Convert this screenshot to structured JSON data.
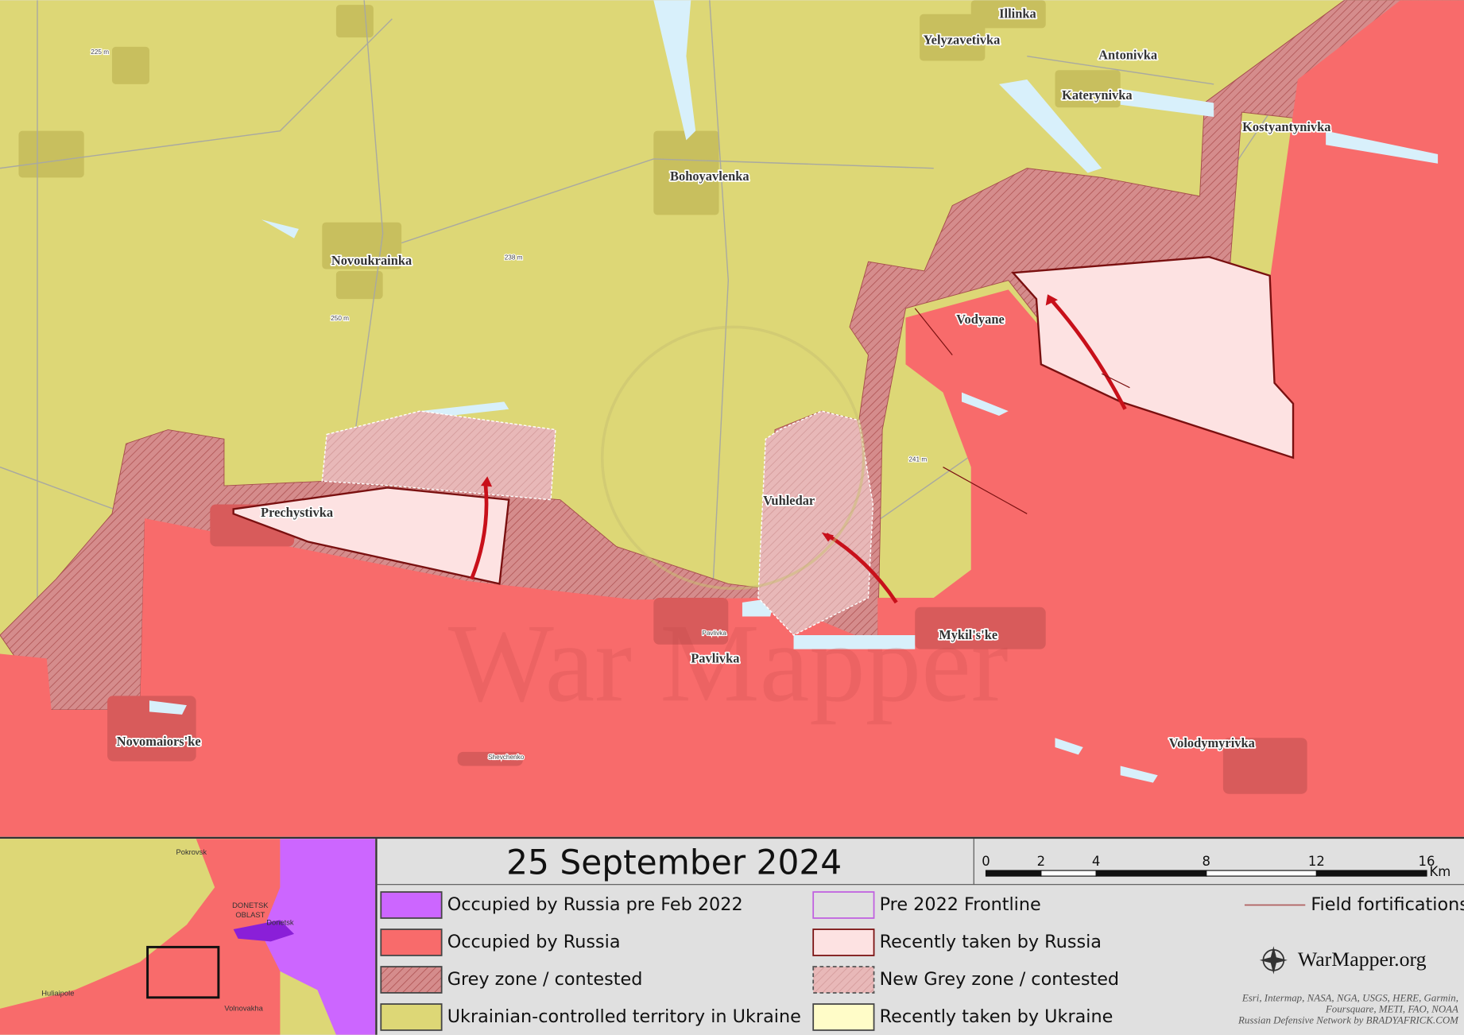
{
  "map": {
    "places": [
      "Illinka",
      "Yelyzavetivka",
      "Antonivka",
      "Katerynivka",
      "Kostyantynivka",
      "Bohoyavlenka",
      "Novoukrainka",
      "Vodyane",
      "Vuhledar",
      "Prechystivka",
      "Mykil's'ke",
      "Pavlivka",
      "Novomaiors'ke",
      "Volodymyrivka"
    ],
    "minor_labels": [
      "225 m",
      "238 m",
      "250 m",
      "241 m",
      "Pavlivka",
      "Shevchenko"
    ],
    "watermark": "War Mapper"
  },
  "legend": {
    "date": "25 September 2024",
    "scale": {
      "ticks": [
        0,
        2,
        4,
        8,
        12,
        16
      ],
      "unit": "Km"
    },
    "items": [
      "Occupied by Russia pre Feb 2022",
      "Occupied by Russia",
      "Grey zone / contested",
      "Ukrainian-controlled territory in Ukraine",
      "Pre 2022 Frontline",
      "Recently taken by Russia",
      "New Grey zone / contested",
      "Recently taken by Ukraine",
      "Field fortifications"
    ],
    "brand": "WarMapper.org",
    "credits": [
      "Esri, Intermap, NASA, NGA, USGS, HERE, Garmin,",
      "Foursquare, METI, FAO, NOAA",
      "Russian Defensive Network by BRADYAFRICK.COM"
    ]
  },
  "inset": {
    "labels": [
      "Pokrovsk",
      "DONETSK",
      "OBLAST",
      "Donetsk",
      "Huliaipole",
      "Volnovakha"
    ]
  }
}
